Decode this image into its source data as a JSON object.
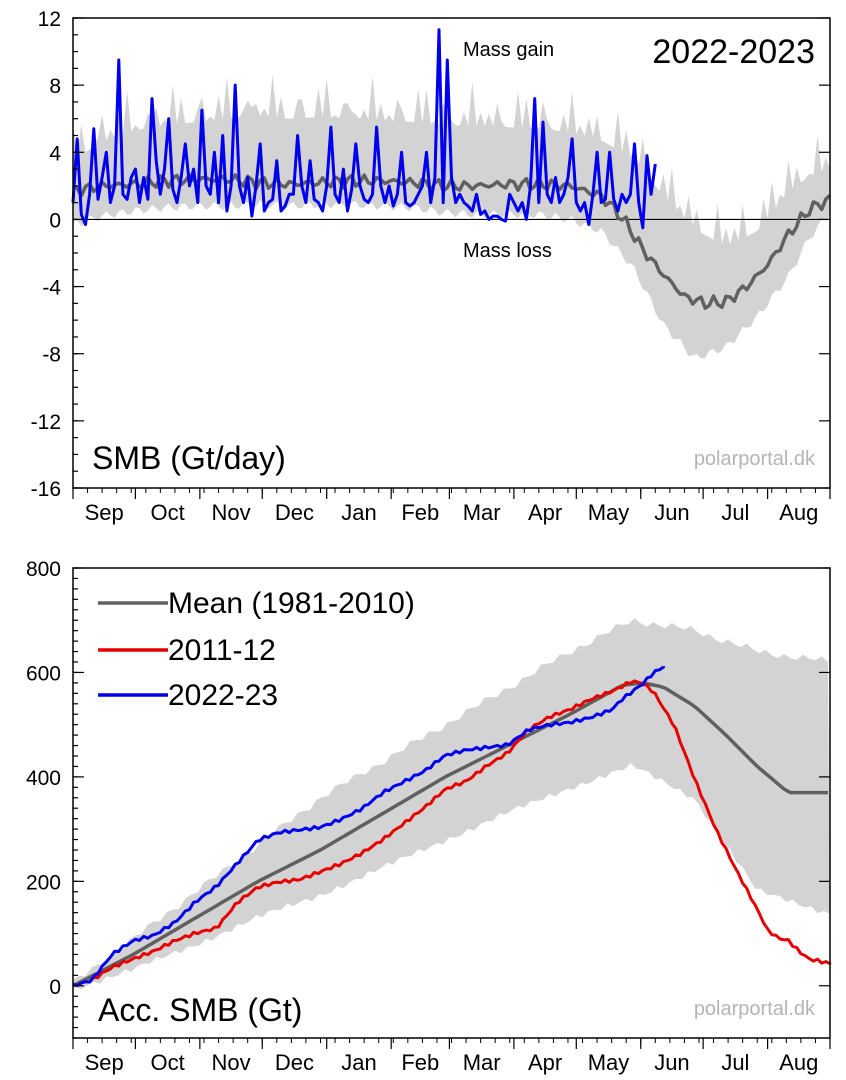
{
  "months": [
    "Sep",
    "Oct",
    "Nov",
    "Dec",
    "Jan",
    "Feb",
    "Mar",
    "Apr",
    "May",
    "Jun",
    "Jul",
    "Aug"
  ],
  "watermark": "polarportal.dk",
  "colors": {
    "mean": "#606060",
    "band": "#d3d3d3",
    "y2011": "#e60000",
    "y2022": "#0000ee"
  },
  "chart_data": [
    {
      "type": "line",
      "title": "2022-2023",
      "ylabel": "SMB (Gt/day)",
      "annotations": [
        "Mass gain",
        "Mass loss"
      ],
      "ylim": [
        -16,
        12
      ],
      "yticks": [
        "12",
        "8",
        "4",
        "0",
        "-4",
        "-8",
        "-12",
        "-16"
      ],
      "ytick_values": [
        12,
        8,
        4,
        0,
        -4,
        -8,
        -12,
        -16
      ],
      "x_unit": "day of hydrological year (1 = 1 Sep)",
      "series": [
        {
          "x": [
            1,
            15,
            30,
            45,
            60,
            75,
            90,
            105,
            120,
            135,
            150,
            165,
            180,
            195,
            210,
            225,
            240,
            255,
            260,
            265,
            270,
            275,
            285,
            295,
            305,
            315,
            325,
            335,
            345,
            355,
            365
          ],
          "values": [
            1.7,
            2.0,
            2.1,
            2.3,
            2.4,
            2.4,
            2.2,
            2.1,
            2.2,
            2.3,
            2.3,
            2.2,
            2.0,
            2.0,
            2.1,
            2.1,
            2.0,
            1.4,
            0.8,
            0.1,
            -0.8,
            -1.8,
            -3.3,
            -4.6,
            -5.0,
            -4.9,
            -4.0,
            -2.7,
            -0.9,
            0.6,
            1.2
          ]
        },
        {
          "x": [
            1,
            15,
            30,
            45,
            60,
            75,
            90,
            105,
            120,
            135,
            150,
            165,
            180,
            195,
            210,
            225,
            240,
            255,
            270,
            285,
            300,
            315,
            330,
            345,
            355,
            365
          ],
          "values": [
            -0.3,
            0.2,
            0.5,
            0.7,
            0.8,
            0.8,
            0.9,
            0.8,
            0.9,
            0.9,
            0.8,
            0.7,
            0.4,
            0.3,
            0.3,
            0.3,
            0.0,
            -0.7,
            -2.8,
            -6.3,
            -8.3,
            -7.6,
            -5.8,
            -3.4,
            -1.1,
            0.4
          ]
        },
        {
          "x": [
            1,
            15,
            30,
            45,
            60,
            75,
            90,
            105,
            120,
            135,
            150,
            165,
            180,
            195,
            210,
            225,
            240,
            255,
            270,
            285,
            300,
            315,
            330,
            345,
            355,
            365
          ],
          "values": [
            3.6,
            4.6,
            5.3,
            5.6,
            5.8,
            6.0,
            6.2,
            6.0,
            6.1,
            6.0,
            5.9,
            5.8,
            5.6,
            5.6,
            5.5,
            5.4,
            5.2,
            4.7,
            3.7,
            1.4,
            -0.6,
            -1.6,
            -0.7,
            1.6,
            2.6,
            3.0
          ]
        },
        {
          "name": "2022-23",
          "x": [
            1,
            3,
            5,
            7,
            9,
            11,
            13,
            15,
            17,
            19,
            21,
            23,
            25,
            27,
            29,
            31,
            33,
            35,
            37,
            39,
            41,
            43,
            45,
            47,
            49,
            51,
            53,
            55,
            57,
            59,
            61,
            63,
            65,
            67,
            69,
            71,
            73,
            75,
            77,
            79,
            81,
            83,
            85,
            87,
            89,
            91,
            93,
            95,
            97,
            99,
            101,
            103,
            105,
            107,
            109,
            111,
            113,
            115,
            117,
            119,
            121,
            123,
            125,
            127,
            129,
            131,
            133,
            135,
            137,
            139,
            141,
            143,
            145,
            147,
            149,
            151,
            153,
            155,
            157,
            159,
            161,
            163,
            165,
            167,
            169,
            171,
            173,
            175,
            177,
            179,
            181,
            183,
            185,
            187,
            189,
            191,
            193,
            195,
            197,
            199,
            201,
            203,
            205,
            207,
            209,
            211,
            213,
            215,
            217,
            219,
            221,
            223,
            225,
            227,
            229,
            231,
            233,
            235,
            237,
            239,
            241,
            243,
            245,
            247,
            249,
            251,
            253,
            255,
            257,
            259,
            261,
            263,
            265,
            267,
            269,
            271,
            273,
            275,
            277,
            279,
            281
          ],
          "values": [
            1.0,
            4.8,
            0.3,
            -0.3,
            1.5,
            5.4,
            1.2,
            2.5,
            4.0,
            1.0,
            2.0,
            9.5,
            1.5,
            1.2,
            2.5,
            3.0,
            1.0,
            2.5,
            1.2,
            7.2,
            3.5,
            1.5,
            3.0,
            6.0,
            1.8,
            1.0,
            2.5,
            4.5,
            2.0,
            3.0,
            1.0,
            6.5,
            2.0,
            1.5,
            4.0,
            1.0,
            5.0,
            0.5,
            2.0,
            8.0,
            2.0,
            1.0,
            2.5,
            0.2,
            2.0,
            4.5,
            0.5,
            1.0,
            1.2,
            3.5,
            0.5,
            0.8,
            1.5,
            1.5,
            5.0,
            2.0,
            1.0,
            3.5,
            1.2,
            1.0,
            0.5,
            2.0,
            5.5,
            1.5,
            1.0,
            3.0,
            0.5,
            1.8,
            4.5,
            2.0,
            1.2,
            1.0,
            1.5,
            5.5,
            2.0,
            1.0,
            2.0,
            0.8,
            1.5,
            4.0,
            1.0,
            0.8,
            1.0,
            1.5,
            2.0,
            4.0,
            1.0,
            2.5,
            11.3,
            1.0,
            9.5,
            2.5,
            1.0,
            1.5,
            1.0,
            0.8,
            0.5,
            1.5,
            0.3,
            0.5,
            0.0,
            0.2,
            0.2,
            0.0,
            -0.1,
            1.5,
            1.0,
            0.5,
            1.0,
            0.0,
            2.0,
            7.2,
            1.0,
            5.8,
            1.5,
            1.0,
            2.5,
            1.0,
            1.5,
            2.5,
            4.8,
            1.0,
            0.5,
            1.0,
            -0.3,
            1.5,
            4.0,
            1.0,
            1.2,
            4.0,
            1.2,
            0.5,
            1.5,
            1.0,
            1.5,
            4.5,
            1.0,
            -0.5,
            3.8,
            1.5,
            3.3
          ]
        }
      ]
    },
    {
      "type": "line",
      "ylabel": "Acc. SMB (Gt)",
      "ylim": [
        -100,
        800
      ],
      "yticks": [
        "800",
        "600",
        "400",
        "200",
        "0"
      ],
      "ytick_values": [
        800,
        600,
        400,
        200,
        0
      ],
      "x_unit": "day of hydrological year (1 = 1 Sep)",
      "legend_position": "top-left",
      "series": [
        {
          "name": "Mean (1981-2010)",
          "x": [
            1,
            30,
            60,
            90,
            120,
            150,
            180,
            210,
            240,
            265,
            275,
            285,
            300,
            315,
            330,
            345,
            365
          ],
          "values": [
            0,
            60,
            130,
            200,
            260,
            330,
            400,
            460,
            520,
            575,
            580,
            572,
            535,
            480,
            420,
            370,
            370
          ]
        },
        {
          "name": "2011-12",
          "x": [
            1,
            10,
            20,
            30,
            40,
            50,
            60,
            70,
            80,
            90,
            100,
            110,
            120,
            130,
            140,
            150,
            160,
            170,
            180,
            190,
            200,
            210,
            220,
            230,
            240,
            250,
            260,
            265,
            270,
            275,
            280,
            290,
            300,
            310,
            320,
            330,
            335,
            340,
            345,
            350,
            355,
            365
          ],
          "values": [
            0,
            10,
            35,
            50,
            65,
            85,
            100,
            110,
            160,
            190,
            200,
            205,
            220,
            235,
            255,
            280,
            310,
            340,
            375,
            390,
            420,
            445,
            490,
            515,
            530,
            550,
            565,
            575,
            585,
            580,
            565,
            500,
            395,
            300,
            220,
            145,
            105,
            90,
            85,
            65,
            50,
            42
          ]
        },
        {
          "name": "2022-23",
          "x": [
            1,
            10,
            20,
            30,
            40,
            50,
            60,
            70,
            80,
            90,
            100,
            110,
            120,
            130,
            140,
            150,
            160,
            170,
            180,
            190,
            200,
            210,
            220,
            230,
            240,
            250,
            260,
            265,
            270,
            275,
            280,
            285
          ],
          "values": [
            0,
            10,
            60,
            85,
            95,
            120,
            160,
            190,
            235,
            280,
            295,
            300,
            305,
            320,
            340,
            370,
            390,
            410,
            440,
            450,
            455,
            460,
            490,
            500,
            505,
            515,
            530,
            550,
            565,
            580,
            600,
            612
          ]
        },
        {
          "x": [
            1,
            30,
            60,
            90,
            120,
            150,
            180,
            210,
            240,
            270,
            300,
            330,
            365
          ],
          "values": [
            -5,
            30,
            80,
            130,
            175,
            225,
            280,
            330,
            380,
            420,
            360,
            180,
            140
          ]
        },
        {
          "x": [
            1,
            30,
            60,
            90,
            120,
            150,
            180,
            210,
            240,
            270,
            300,
            330,
            365
          ],
          "values": [
            5,
            90,
            180,
            270,
            360,
            430,
            500,
            570,
            640,
            700,
            680,
            640,
            620
          ]
        }
      ]
    }
  ]
}
